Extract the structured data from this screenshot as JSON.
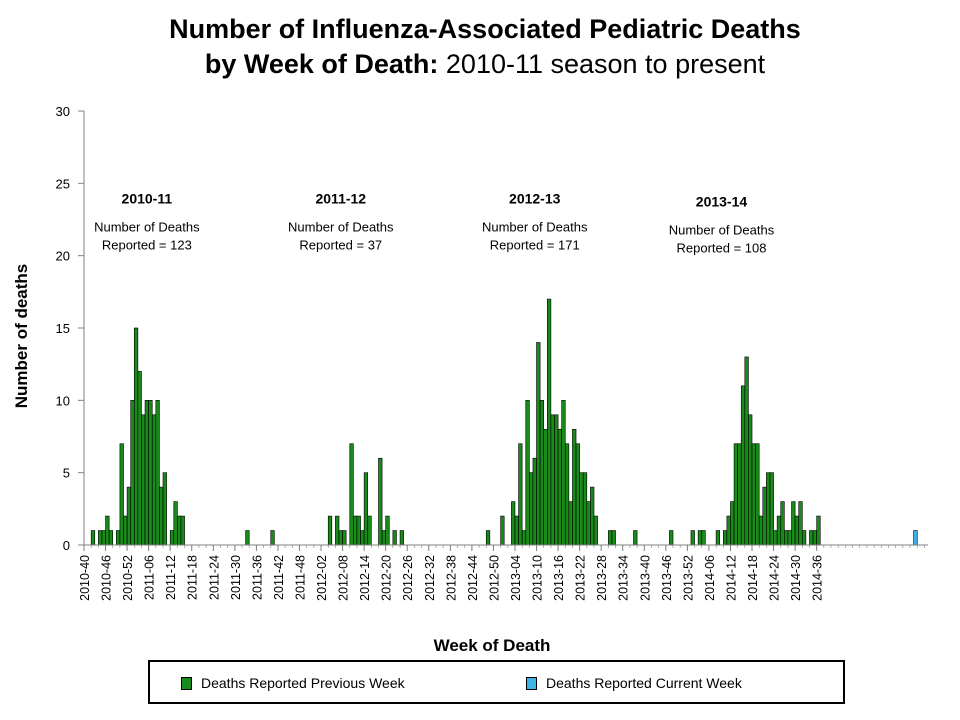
{
  "title": {
    "line1": "Number of Influenza-Associated Pediatric Deaths",
    "line2_bold": "by Week of Death:",
    "line2_rest": " 2010-11 season to present"
  },
  "colors": {
    "previous": "#1a8a1a",
    "current": "#3cb4e6",
    "bar_stroke": "#000000",
    "axis": "#808080"
  },
  "chart_data": {
    "type": "bar",
    "title": "Number of Influenza-Associated Pediatric Deaths by Week of Death: 2010-11 season to present",
    "xlabel": "Week of Death",
    "ylabel": "Number of deaths",
    "ylim": [
      0,
      30
    ],
    "yticks": [
      0,
      5,
      10,
      15,
      20,
      25,
      30
    ],
    "first_week": "2010-40",
    "xtick_labels": [
      "2010-40",
      "2010-46",
      "2010-52",
      "2011-06",
      "2011-12",
      "2011-18",
      "2011-24",
      "2011-30",
      "2011-36",
      "2011-42",
      "2011-48",
      "2012-02",
      "2012-08",
      "2012-14",
      "2012-20",
      "2012-26",
      "2012-32",
      "2012-38",
      "2012-44",
      "2012-50",
      "2013-04",
      "2013-10",
      "2013-16",
      "2013-22",
      "2013-28",
      "2013-34",
      "2013-40",
      "2013-46",
      "2013-52",
      "2014-06",
      "2014-12",
      "2014-18",
      "2014-24",
      "2014-30",
      "2014-36"
    ],
    "series": [
      {
        "name": "Deaths Reported Previous Week",
        "values": [
          0,
          0,
          1,
          0,
          1,
          1,
          2,
          1,
          0,
          1,
          7,
          2,
          4,
          10,
          15,
          12,
          9,
          10,
          10,
          9,
          10,
          4,
          5,
          0,
          1,
          3,
          2,
          2,
          0,
          0,
          0,
          0,
          0,
          0,
          0,
          0,
          0,
          0,
          0,
          0,
          0,
          0,
          0,
          0,
          0,
          1,
          0,
          0,
          0,
          0,
          0,
          0,
          1,
          0,
          0,
          0,
          0,
          0,
          0,
          0,
          0,
          0,
          0,
          0,
          0,
          0,
          0,
          0,
          2,
          0,
          2,
          1,
          1,
          0,
          7,
          2,
          2,
          1,
          5,
          2,
          0,
          0,
          6,
          1,
          2,
          0,
          1,
          0,
          1,
          0,
          0,
          0,
          0,
          0,
          0,
          0,
          0,
          0,
          0,
          0,
          0,
          0,
          0,
          0,
          0,
          0,
          0,
          0,
          0,
          0,
          0,
          0,
          1,
          0,
          0,
          0,
          2,
          0,
          0,
          3,
          2,
          7,
          1,
          10,
          5,
          6,
          14,
          10,
          8,
          17,
          9,
          9,
          8,
          10,
          7,
          3,
          8,
          7,
          5,
          5,
          3,
          4,
          2,
          0,
          0,
          0,
          1,
          1,
          0,
          0,
          0,
          0,
          0,
          1,
          0,
          0,
          0,
          0,
          0,
          0,
          0,
          0,
          0,
          1,
          0,
          0,
          0,
          0,
          0,
          1,
          0,
          1,
          1,
          0,
          0,
          0,
          1,
          0,
          1,
          2,
          3,
          7,
          7,
          11,
          13,
          9,
          7,
          7,
          2,
          4,
          5,
          5,
          1,
          2,
          3,
          1,
          1,
          3,
          2,
          3,
          1,
          0,
          1,
          1,
          2,
          0,
          0,
          0,
          0,
          0,
          0,
          0,
          0,
          0,
          0,
          0,
          0,
          0,
          0,
          0,
          0,
          0,
          0,
          0,
          0,
          0,
          0,
          0,
          0,
          0,
          0,
          0,
          0,
          0,
          0
        ]
      },
      {
        "name": "Deaths Reported Current Week",
        "values": [
          0,
          0,
          0,
          0,
          0,
          0,
          0,
          0,
          0,
          0,
          0,
          0,
          0,
          0,
          0,
          0,
          0,
          0,
          0,
          0,
          0,
          0,
          0,
          0,
          0,
          0,
          0,
          0,
          0,
          0,
          0,
          0,
          0,
          0,
          0,
          0,
          0,
          0,
          0,
          0,
          0,
          0,
          0,
          0,
          0,
          0,
          0,
          0,
          0,
          0,
          0,
          0,
          0,
          0,
          0,
          0,
          0,
          0,
          0,
          0,
          0,
          0,
          0,
          0,
          0,
          0,
          0,
          0,
          0,
          0,
          0,
          0,
          0,
          0,
          0,
          0,
          0,
          0,
          0,
          0,
          0,
          0,
          0,
          0,
          0,
          0,
          0,
          0,
          0,
          0,
          0,
          0,
          0,
          0,
          0,
          0,
          0,
          0,
          0,
          0,
          0,
          0,
          0,
          0,
          0,
          0,
          0,
          0,
          0,
          0,
          0,
          0,
          0,
          0,
          0,
          0,
          0,
          0,
          0,
          0,
          0,
          0,
          0,
          0,
          0,
          0,
          0,
          0,
          0,
          0,
          0,
          0,
          0,
          0,
          0,
          0,
          0,
          0,
          0,
          0,
          0,
          0,
          0,
          0,
          0,
          0,
          0,
          0,
          0,
          0,
          0,
          0,
          0,
          0,
          0,
          0,
          0,
          0,
          0,
          0,
          0,
          0,
          0,
          0,
          0,
          0,
          0,
          0,
          0,
          0,
          0,
          0,
          0,
          0,
          0,
          0,
          0,
          0,
          0,
          0,
          0,
          0,
          0,
          0,
          0,
          0,
          0,
          0,
          0,
          0,
          0,
          0,
          0,
          0,
          0,
          0,
          0,
          0,
          0,
          0,
          0,
          0,
          0,
          0,
          0,
          0,
          0,
          0,
          0,
          0,
          0,
          0,
          0,
          0,
          0,
          0,
          0,
          0,
          0,
          0,
          0,
          0,
          0,
          0,
          0,
          0,
          0,
          0,
          0,
          0,
          0,
          1,
          0,
          0,
          0,
          0,
          0,
          0,
          0,
          0,
          0,
          0
        ]
      }
    ],
    "annotations": [
      {
        "season": "2010-11",
        "text": "Number of Deaths",
        "text2": "Reported = 123",
        "week": "2011-05",
        "y_top": 23.6
      },
      {
        "season": "2011-12",
        "text": "Number of Deaths",
        "text2": "Reported = 37",
        "week": "2012-07",
        "y_top": 23.6
      },
      {
        "season": "2012-13",
        "text": "Number of Deaths",
        "text2": "Reported = 171",
        "week": "2013-09",
        "y_top": 23.6
      },
      {
        "season": "2013-14",
        "text": "Number of Deaths",
        "text2": "Reported = 108",
        "week": "2014-09",
        "y_top": 23.4
      }
    ],
    "legend_position": "bottom",
    "grid": false
  }
}
